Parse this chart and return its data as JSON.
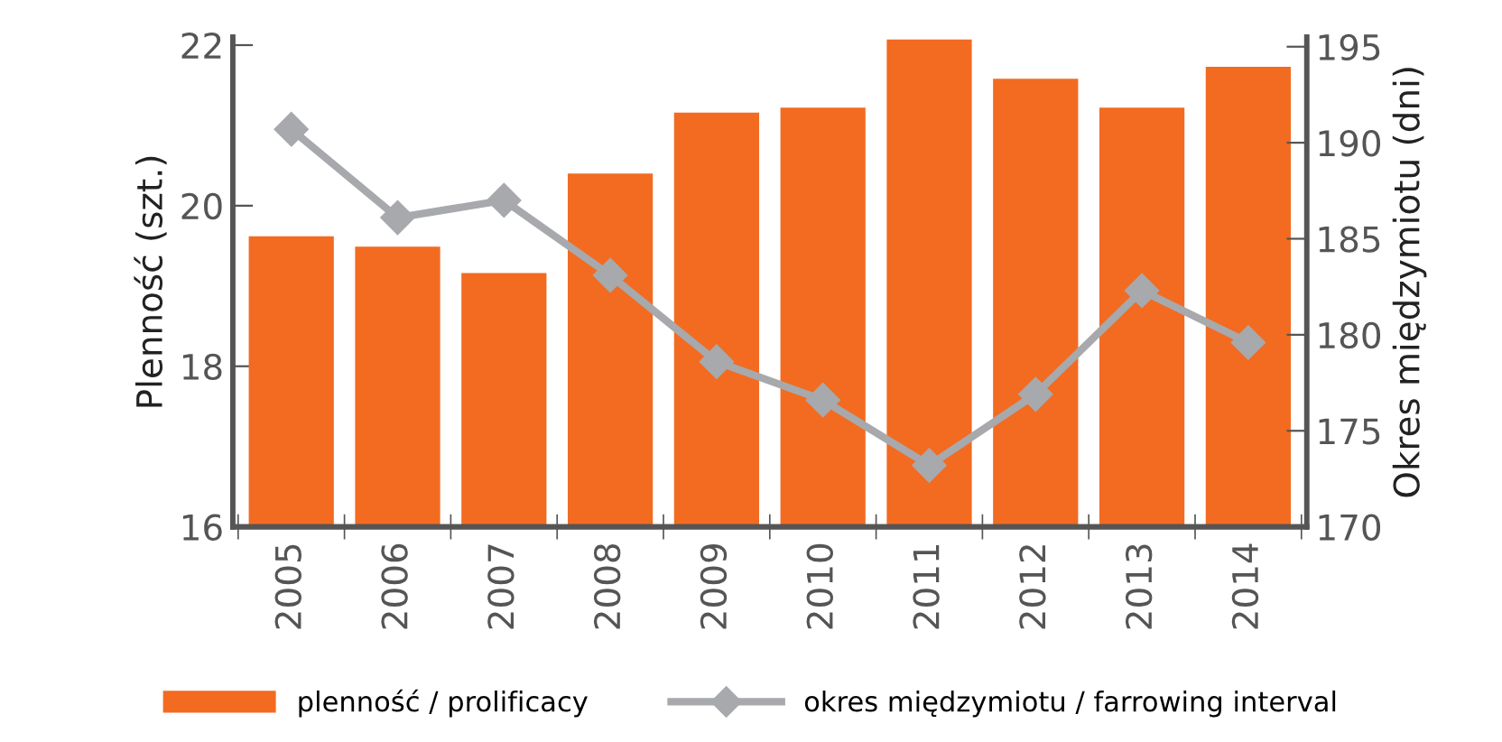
{
  "chart_data": {
    "type": "bar",
    "categories": [
      "2005",
      "2006",
      "2007",
      "2008",
      "2009",
      "2010",
      "2011",
      "2012",
      "2013",
      "2014"
    ],
    "ylabel": "Plenność (szt.)",
    "y2label": "Okres międzymiotu (dni)",
    "series": [
      {
        "name": "plenność / prolificacy",
        "color": "#f26b21",
        "values": [
          19.62,
          19.49,
          19.16,
          20.4,
          21.16,
          21.22,
          22.07,
          21.58,
          21.22,
          21.73
        ]
      },
      {
        "name": "okres międzymiotu / farrowing interval",
        "type": "line",
        "axis": "y2",
        "color": "#a7a9ac",
        "marker": "diamond",
        "values": [
          190.7,
          186.1,
          187.0,
          183.1,
          178.6,
          176.6,
          173.2,
          176.9,
          182.3,
          179.6
        ]
      }
    ],
    "ylim": [
      16,
      22.1
    ],
    "yticks": [
      16,
      18,
      20,
      22
    ],
    "y2lim": [
      170,
      195.5
    ],
    "y2ticks": [
      170,
      175,
      180,
      185,
      190,
      195
    ],
    "grid": false,
    "legend": "bottom"
  }
}
